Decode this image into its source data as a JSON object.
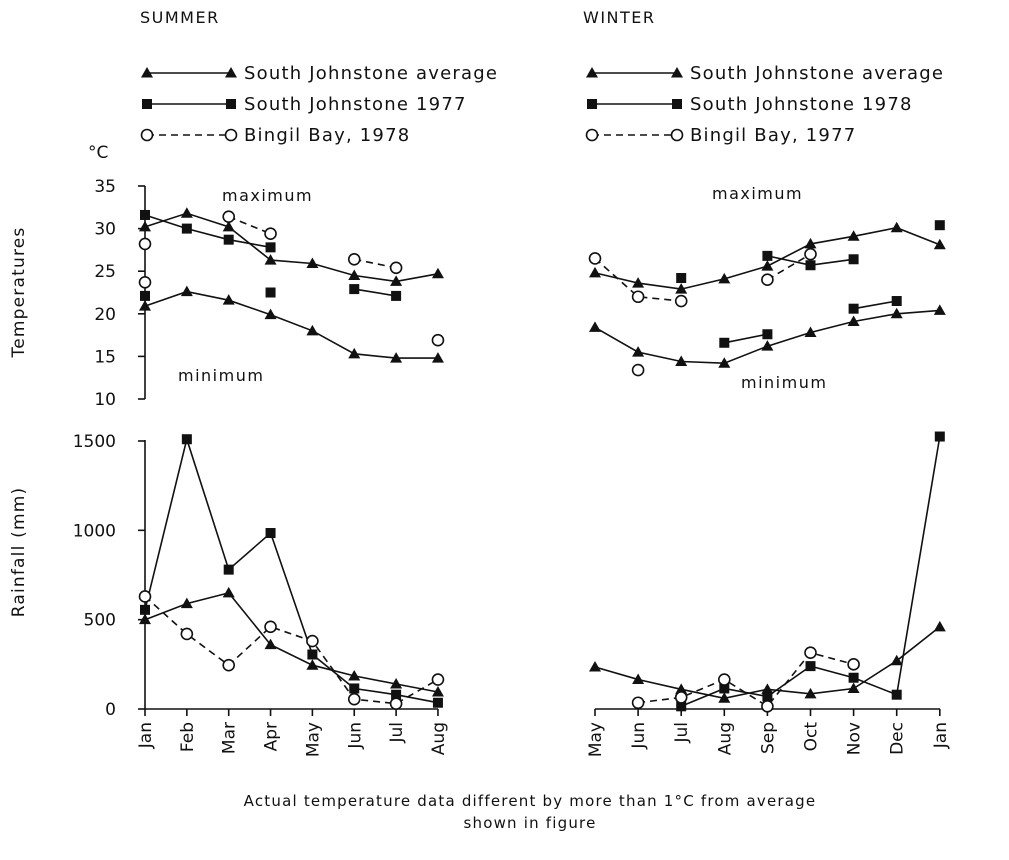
{
  "footnote": {
    "line1": "Actual temperature data different by more than 1°C from average",
    "line2": "shown in figure"
  },
  "temp_axis": {
    "unit": "°C",
    "label": "Temperatures",
    "ticks": [
      "35",
      "30",
      "25",
      "20",
      "15",
      "10"
    ]
  },
  "rain_axis": {
    "label": "Rainfall (mm)",
    "ticks": [
      "1500",
      "1000",
      "500",
      "0"
    ]
  },
  "chart_data": [
    {
      "type": "line",
      "panel": "summer",
      "title": "SUMMER",
      "annotations": [
        "maximum",
        "minimum"
      ],
      "categories": [
        "Jan",
        "Feb",
        "Mar",
        "Apr",
        "May",
        "Jun",
        "Jul",
        "Aug"
      ],
      "ylabel": "Temperatures",
      "ylim": [
        10,
        35
      ],
      "series": [
        {
          "name": "South Johnstone average",
          "marker": "triangle",
          "style": "solid",
          "values": [
            30.2,
            31.8,
            30.2,
            26.3,
            25.9,
            24.5,
            23.8,
            24.7
          ]
        },
        {
          "name": "South Johnstone average",
          "marker": "triangle",
          "style": "solid",
          "values": [
            20.9,
            22.6,
            21.6,
            19.9,
            18.0,
            15.3,
            14.8,
            14.8
          ]
        },
        {
          "name": "South Johnstone 1977",
          "marker": "square",
          "style": "solid",
          "values": [
            31.6,
            30.0,
            28.7,
            27.8,
            null,
            22.9,
            22.1,
            null
          ]
        },
        {
          "name": "South Johnstone 1977",
          "marker": "square",
          "style": "solid",
          "values": [
            22.1,
            null,
            null,
            22.5,
            null,
            null,
            null,
            null
          ]
        },
        {
          "name": "Bingil Bay, 1978",
          "marker": "circle",
          "style": "dashed",
          "values": [
            28.2,
            null,
            31.4,
            29.4,
            null,
            26.4,
            25.4,
            null
          ]
        },
        {
          "name": "Bingil Bay, 1978",
          "marker": "circle",
          "style": "dashed",
          "values": [
            23.7,
            null,
            null,
            null,
            null,
            null,
            null,
            16.9
          ]
        }
      ]
    },
    {
      "type": "line",
      "panel": "summer",
      "categories": [
        "Jan",
        "Feb",
        "Mar",
        "Apr",
        "May",
        "Jun",
        "Jul",
        "Aug"
      ],
      "ylabel": "Rainfall (mm)",
      "ylim": [
        0,
        1500
      ],
      "series": [
        {
          "name": "South Johnstone average",
          "marker": "triangle",
          "style": "solid",
          "values": [
            500,
            590,
            650,
            360,
            245,
            185,
            140,
            95
          ]
        },
        {
          "name": "South Johnstone 1977",
          "marker": "square",
          "style": "solid",
          "values": [
            555,
            1510,
            780,
            985,
            305,
            115,
            80,
            35
          ]
        },
        {
          "name": "Bingil Bay, 1978",
          "marker": "circle",
          "style": "dashed",
          "values": [
            630,
            420,
            245,
            460,
            380,
            55,
            30,
            165
          ]
        }
      ]
    },
    {
      "type": "line",
      "panel": "winter",
      "title": "WINTER",
      "annotations": [
        "maximum",
        "minimum"
      ],
      "categories": [
        "May",
        "Jun",
        "Jul",
        "Aug",
        "Sep",
        "Oct",
        "Nov",
        "Dec",
        "Jan"
      ],
      "ylim": [
        10,
        35
      ],
      "series": [
        {
          "name": "South Johnstone average",
          "marker": "triangle",
          "style": "solid",
          "values": [
            24.8,
            23.6,
            22.9,
            24.1,
            25.6,
            28.2,
            29.1,
            30.1,
            28.1
          ]
        },
        {
          "name": "South Johnstone average",
          "marker": "triangle",
          "style": "solid",
          "values": [
            18.4,
            15.5,
            14.4,
            14.2,
            16.2,
            17.8,
            19.1,
            20.0,
            20.4
          ]
        },
        {
          "name": "South Johnstone 1978",
          "marker": "square",
          "style": "solid",
          "values": [
            null,
            null,
            24.2,
            null,
            26.8,
            25.7,
            26.4,
            null,
            30.4
          ]
        },
        {
          "name": "South Johnstone 1978",
          "marker": "square",
          "style": "solid",
          "values": [
            null,
            null,
            null,
            16.6,
            17.6,
            null,
            20.6,
            21.5,
            null
          ]
        },
        {
          "name": "Bingil Bay, 1977",
          "marker": "circle",
          "style": "dashed",
          "values": [
            26.5,
            22.0,
            21.5,
            null,
            24.0,
            27.0,
            null,
            null,
            null
          ]
        },
        {
          "name": "Bingil Bay, 1977",
          "marker": "circle",
          "style": "dashed",
          "values": [
            null,
            13.4,
            null,
            null,
            null,
            null,
            null,
            null,
            null
          ]
        }
      ]
    },
    {
      "type": "line",
      "panel": "winter",
      "categories": [
        "May",
        "Jun",
        "Jul",
        "Aug",
        "Sep",
        "Oct",
        "Nov",
        "Dec",
        "Jan"
      ],
      "ylim": [
        0,
        1500
      ],
      "series": [
        {
          "name": "South Johnstone average",
          "marker": "triangle",
          "style": "solid",
          "values": [
            235,
            165,
            110,
            60,
            110,
            85,
            115,
            270,
            460
          ]
        },
        {
          "name": "South Johnstone 1978",
          "marker": "square",
          "style": "solid",
          "values": [
            null,
            null,
            15,
            115,
            70,
            240,
            175,
            80,
            1525
          ]
        },
        {
          "name": "Bingil Bay, 1977",
          "marker": "circle",
          "style": "dashed",
          "values": [
            null,
            35,
            65,
            165,
            15,
            315,
            250,
            null,
            null
          ]
        }
      ]
    }
  ]
}
